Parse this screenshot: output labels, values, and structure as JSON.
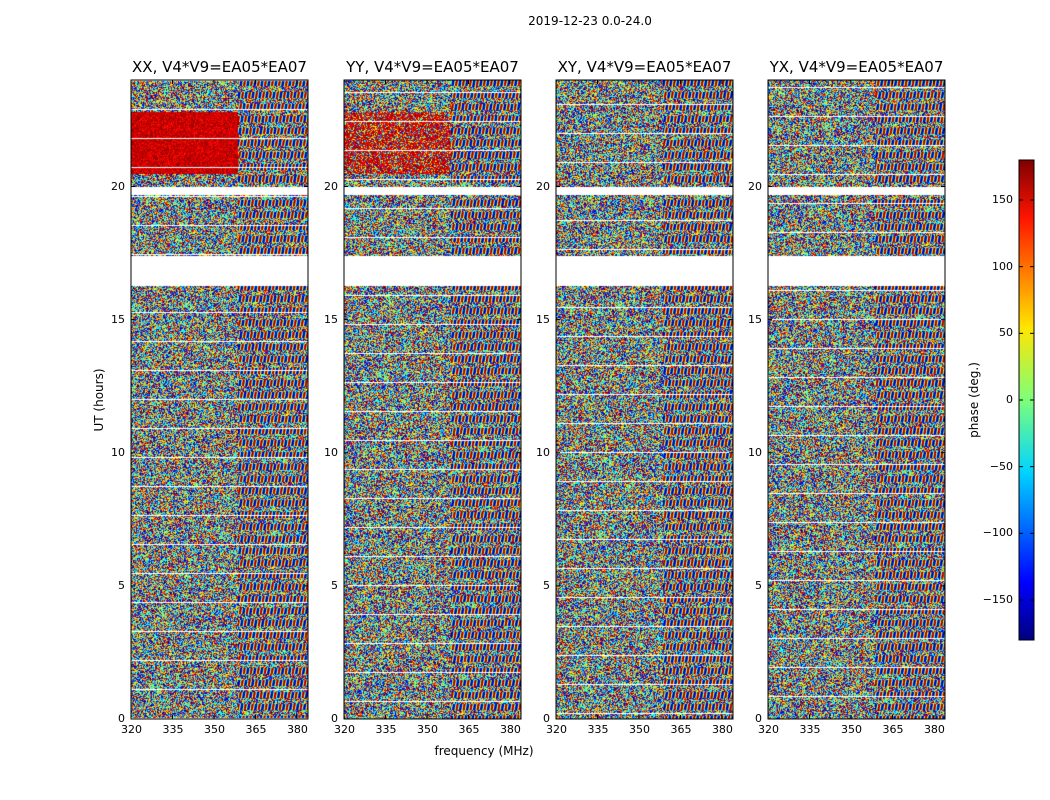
{
  "chart_data": {
    "type": "heatmap",
    "suptitle": "2019-12-23 0.0-24.0",
    "xlabel": "frequency (MHz)",
    "ylabel": "UT (hours)",
    "xlim": [
      320,
      384
    ],
    "ylim": [
      0,
      24
    ],
    "xticks": [
      "320",
      "335",
      "350",
      "365",
      "380"
    ],
    "yticks": [
      "0",
      "5",
      "10",
      "15",
      "20"
    ],
    "colormap": "jet",
    "colorbar": {
      "label": "phase (deg.)",
      "range": [
        -180,
        180
      ],
      "ticks": [
        "150",
        "100",
        "50",
        "0",
        "−50",
        "−100",
        "−150"
      ],
      "tick_values": [
        150,
        100,
        50,
        0,
        -50,
        -100,
        -150
      ]
    },
    "panels": [
      {
        "title": "XX, V4*V9=EA05*EA07"
      },
      {
        "title": "YY, V4*V9=EA05*EA07"
      },
      {
        "title": "XY, V4*V9=EA05*EA07"
      },
      {
        "title": "YX, V4*V9=EA05*EA07"
      }
    ],
    "data_gaps_hours": [
      [
        17.4,
        16.3
      ],
      [
        20.0,
        19.7
      ]
    ]
  }
}
